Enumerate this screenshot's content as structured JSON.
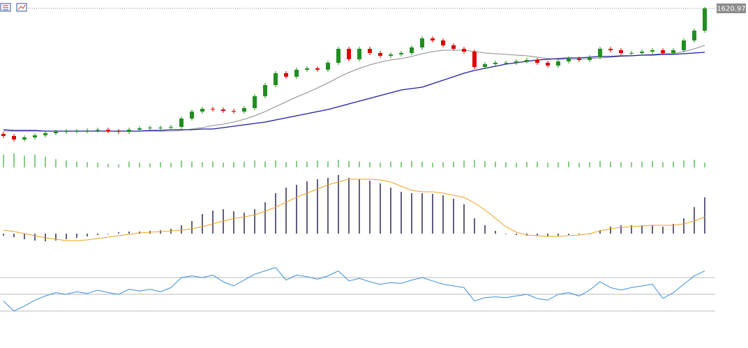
{
  "chart_data": [
    {
      "type": "candlestick",
      "last_label": "1620.97",
      "up_color": "#1f8f1f",
      "down_color": "#e00000",
      "ylim": [
        1418,
        1633
      ],
      "open": [
        1441,
        1438,
        1433,
        1436,
        1439,
        1442,
        1444,
        1445,
        1445,
        1446,
        1447,
        1445,
        1444,
        1447,
        1449,
        1450,
        1450,
        1451,
        1463,
        1473,
        1477,
        1476,
        1474,
        1473,
        1478,
        1495,
        1511,
        1528,
        1523,
        1533,
        1535,
        1533,
        1543,
        1563,
        1548,
        1563,
        1557,
        1553,
        1555,
        1557,
        1565,
        1578,
        1575,
        1568,
        1563,
        1559,
        1537,
        1541,
        1543,
        1543,
        1545,
        1547,
        1543,
        1539,
        1545,
        1549,
        1547,
        1551,
        1563,
        1561,
        1557,
        1557,
        1559,
        1561,
        1557,
        1561,
        1575,
        1589
      ],
      "high": [
        1444,
        1441,
        1439,
        1442,
        1445,
        1447,
        1448,
        1448,
        1449,
        1450,
        1450,
        1448,
        1450,
        1452,
        1453,
        1453,
        1454,
        1466,
        1476,
        1480,
        1480,
        1479,
        1477,
        1481,
        1498,
        1514,
        1531,
        1531,
        1536,
        1538,
        1538,
        1546,
        1566,
        1566,
        1566,
        1566,
        1560,
        1558,
        1560,
        1568,
        1581,
        1581,
        1578,
        1571,
        1566,
        1562,
        1544,
        1546,
        1546,
        1548,
        1550,
        1550,
        1546,
        1548,
        1552,
        1552,
        1554,
        1566,
        1566,
        1564,
        1560,
        1562,
        1564,
        1564,
        1564,
        1578,
        1592,
        1623
      ],
      "low": [
        1435,
        1430,
        1430,
        1433,
        1436,
        1439,
        1441,
        1442,
        1442,
        1443,
        1442,
        1441,
        1441,
        1444,
        1446,
        1447,
        1447,
        1448,
        1460,
        1470,
        1473,
        1471,
        1470,
        1470,
        1475,
        1492,
        1508,
        1520,
        1520,
        1530,
        1530,
        1530,
        1540,
        1545,
        1545,
        1554,
        1550,
        1550,
        1552,
        1554,
        1562,
        1572,
        1565,
        1560,
        1556,
        1534,
        1534,
        1538,
        1540,
        1540,
        1542,
        1540,
        1536,
        1536,
        1542,
        1544,
        1544,
        1548,
        1558,
        1554,
        1554,
        1554,
        1556,
        1554,
        1554,
        1558,
        1572,
        1586
      ],
      "close": [
        1438,
        1433,
        1436,
        1439,
        1442,
        1444,
        1445,
        1445,
        1446,
        1447,
        1445,
        1444,
        1447,
        1449,
        1450,
        1450,
        1451,
        1463,
        1473,
        1477,
        1476,
        1474,
        1473,
        1478,
        1495,
        1511,
        1528,
        1523,
        1533,
        1535,
        1533,
        1543,
        1563,
        1548,
        1563,
        1557,
        1553,
        1555,
        1557,
        1565,
        1578,
        1575,
        1568,
        1563,
        1559,
        1537,
        1541,
        1543,
        1543,
        1545,
        1547,
        1543,
        1539,
        1545,
        1549,
        1547,
        1551,
        1563,
        1561,
        1557,
        1557,
        1559,
        1561,
        1557,
        1561,
        1575,
        1589,
        1620.97
      ],
      "series": [
        {
          "color": "#8c8c8c",
          "values": [
            1445,
            1445,
            1445,
            1445,
            1445,
            1445,
            1445,
            1445,
            1445,
            1445,
            1445,
            1445,
            1445,
            1445,
            1445,
            1445,
            1445,
            1446,
            1448,
            1450,
            1453,
            1455,
            1458,
            1462,
            1467,
            1473,
            1480,
            1487,
            1494,
            1500,
            1507,
            1514,
            1522,
            1529,
            1535,
            1540,
            1544,
            1547,
            1549,
            1552,
            1556,
            1559,
            1561,
            1561,
            1561,
            1559,
            1557,
            1556,
            1555,
            1554,
            1553,
            1551,
            1549,
            1548,
            1548,
            1548,
            1549,
            1550,
            1551,
            1552,
            1553,
            1554,
            1555,
            1556,
            1556,
            1559,
            1563,
            1568
          ]
        },
        {
          "color": "#1c1ca0",
          "values": [
            1447,
            1446,
            1446,
            1446,
            1445,
            1445,
            1445,
            1445,
            1445,
            1445,
            1445,
            1445,
            1445,
            1445,
            1446,
            1446,
            1447,
            1447,
            1447,
            1448,
            1448,
            1450,
            1452,
            1454,
            1456,
            1458,
            1461,
            1464,
            1467,
            1470,
            1473,
            1476,
            1480,
            1484,
            1488,
            1492,
            1496,
            1500,
            1504,
            1506,
            1508,
            1513,
            1518,
            1523,
            1528,
            1532,
            1535,
            1538,
            1541,
            1543,
            1545,
            1547,
            1548,
            1549,
            1550,
            1550,
            1551,
            1552,
            1552,
            1553,
            1553,
            1554,
            1554,
            1555,
            1555,
            1556,
            1557,
            1558
          ]
        }
      ]
    },
    {
      "type": "bar",
      "color": "#2fae2f",
      "ylim": [
        0,
        30
      ],
      "values": [
        22,
        24,
        20,
        22,
        18,
        14,
        12,
        10,
        9,
        8,
        6,
        5,
        10,
        8,
        7,
        9,
        8,
        12,
        10,
        9,
        10,
        8,
        9,
        10,
        12,
        10,
        12,
        9,
        11,
        10,
        12,
        10,
        13,
        11,
        10,
        9,
        8,
        10,
        9,
        11,
        10,
        8,
        9,
        10,
        12,
        13,
        11,
        10,
        9,
        8,
        9,
        10,
        8,
        9,
        10,
        8,
        9,
        11,
        10,
        9,
        9,
        10,
        11,
        9,
        10,
        12,
        13,
        8
      ]
    },
    {
      "type": "macd",
      "color": "#1a1a4a",
      "ylim": [
        -20,
        90
      ],
      "values": [
        -3,
        -5,
        -8,
        -10,
        -11,
        -10,
        -8,
        -6,
        -4,
        -2,
        0,
        2,
        3,
        3,
        4,
        5,
        7,
        12,
        18,
        28,
        33,
        35,
        32,
        30,
        35,
        45,
        58,
        66,
        70,
        75,
        78,
        80,
        84,
        80,
        78,
        76,
        72,
        66,
        60,
        58,
        58,
        57,
        55,
        50,
        42,
        22,
        12,
        4,
        0,
        -2,
        -3,
        -3,
        -4,
        -3,
        -2,
        -1,
        0,
        5,
        10,
        12,
        12,
        12,
        12,
        10,
        14,
        22,
        38,
        52
      ],
      "signal": {
        "color": "#f0a020",
        "values": [
          5,
          3,
          0,
          -3,
          -6,
          -8,
          -10,
          -10,
          -9,
          -7,
          -5,
          -3,
          -1,
          1,
          2,
          3,
          4,
          5,
          7,
          10,
          14,
          18,
          22,
          24,
          27,
          32,
          38,
          45,
          52,
          58,
          64,
          70,
          74,
          78,
          78,
          78,
          77,
          74,
          68,
          62,
          60,
          60,
          58,
          55,
          52,
          44,
          34,
          22,
          10,
          2,
          -2,
          -3,
          -4,
          -4,
          -3,
          -2,
          0,
          4,
          7,
          9,
          10,
          11,
          12,
          12,
          12,
          14,
          18,
          24
        ]
      }
    },
    {
      "type": "line",
      "color": "#3a8fe0",
      "ylim": [
        10,
        90
      ],
      "levels": [
        30,
        50,
        70
      ],
      "values": [
        42,
        30,
        36,
        43,
        48,
        52,
        50,
        53,
        51,
        55,
        52,
        50,
        56,
        54,
        56,
        53,
        58,
        70,
        72,
        70,
        73,
        65,
        60,
        67,
        74,
        78,
        82,
        67,
        73,
        71,
        68,
        72,
        78,
        66,
        69,
        65,
        62,
        64,
        63,
        67,
        70,
        66,
        62,
        60,
        58,
        42,
        46,
        47,
        46,
        48,
        50,
        45,
        43,
        50,
        52,
        48,
        55,
        65,
        58,
        55,
        58,
        60,
        62,
        45,
        52,
        62,
        72,
        78
      ]
    }
  ]
}
